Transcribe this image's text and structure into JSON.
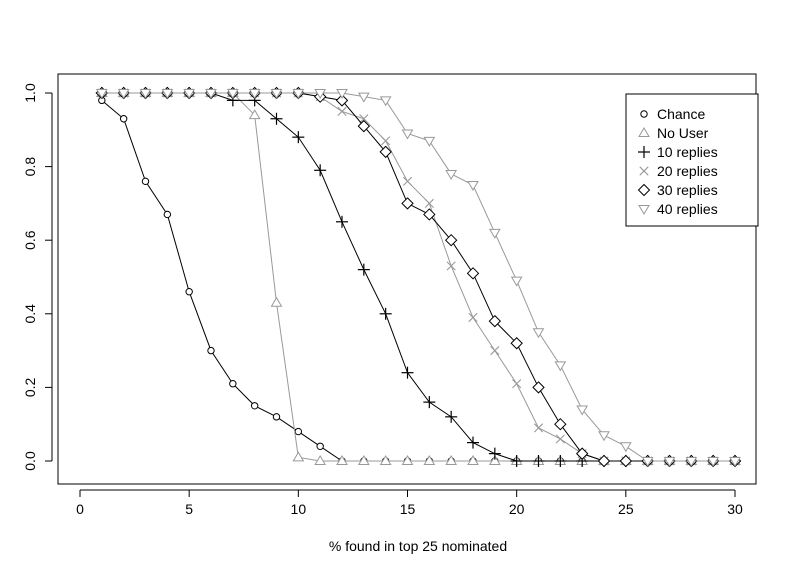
{
  "chart_data": {
    "type": "line",
    "xlabel": "% found in top 25 nominated",
    "ylabel": "",
    "xlim": [
      0,
      30
    ],
    "ylim": [
      0,
      1
    ],
    "xticks": [
      0,
      5,
      10,
      15,
      20,
      25,
      30
    ],
    "yticks": [
      0.0,
      0.2,
      0.4,
      0.6,
      0.8,
      1.0
    ],
    "xtick_labels": [
      "0",
      "5",
      "10",
      "15",
      "20",
      "25",
      "30"
    ],
    "ytick_labels": [
      "0.0",
      "0.2",
      "0.4",
      "0.6",
      "0.8",
      "1.0"
    ],
    "grid": false,
    "legend_position": "top-right",
    "series": [
      {
        "name": "Chance",
        "marker": "circle",
        "color": "#000000",
        "x": [
          1,
          2,
          3,
          4,
          5,
          6,
          7,
          8,
          9,
          10,
          11,
          12,
          13,
          14,
          15,
          16,
          17,
          18,
          19,
          20,
          21,
          22,
          23,
          24,
          25,
          26,
          27,
          28,
          29,
          30
        ],
        "y": [
          0.98,
          0.93,
          0.76,
          0.67,
          0.46,
          0.3,
          0.21,
          0.15,
          0.12,
          0.08,
          0.04,
          0,
          0,
          0,
          0,
          0,
          0,
          0,
          0,
          0,
          0,
          0,
          0,
          0,
          0,
          0,
          0,
          0,
          0,
          0
        ]
      },
      {
        "name": "No User",
        "marker": "triangle-up",
        "color": "#999999",
        "x": [
          1,
          2,
          3,
          4,
          5,
          6,
          7,
          8,
          9,
          10,
          11,
          12,
          13,
          14,
          15,
          16,
          17,
          18,
          19,
          20,
          21,
          22,
          23,
          24,
          25,
          26,
          27,
          28,
          29,
          30
        ],
        "y": [
          1,
          1,
          1,
          1,
          1,
          1,
          1,
          0.94,
          0.43,
          0.01,
          0,
          0,
          0,
          0,
          0,
          0,
          0,
          0,
          0,
          0,
          0,
          0,
          0,
          0,
          0,
          0,
          0,
          0,
          0,
          0
        ]
      },
      {
        "name": "10 replies",
        "marker": "plus",
        "color": "#000000",
        "x": [
          1,
          2,
          3,
          4,
          5,
          6,
          7,
          8,
          9,
          10,
          11,
          12,
          13,
          14,
          15,
          16,
          17,
          18,
          19,
          20,
          21,
          22,
          23,
          24,
          25,
          26,
          27,
          28,
          29,
          30
        ],
        "y": [
          1,
          1,
          1,
          1,
          1,
          1,
          0.98,
          0.98,
          0.93,
          0.88,
          0.79,
          0.65,
          0.52,
          0.4,
          0.24,
          0.16,
          0.12,
          0.05,
          0.02,
          0,
          0,
          0,
          0,
          0,
          0,
          0,
          0,
          0,
          0,
          0
        ]
      },
      {
        "name": "20 replies",
        "marker": "cross",
        "color": "#999999",
        "x": [
          1,
          2,
          3,
          4,
          5,
          6,
          7,
          8,
          9,
          10,
          11,
          12,
          13,
          14,
          15,
          16,
          17,
          18,
          19,
          20,
          21,
          22,
          23,
          24,
          25,
          26,
          27,
          28,
          29,
          30
        ],
        "y": [
          1,
          1,
          1,
          1,
          1,
          1,
          1,
          1,
          1,
          1,
          0.99,
          0.95,
          0.93,
          0.87,
          0.76,
          0.7,
          0.53,
          0.39,
          0.3,
          0.21,
          0.09,
          0.06,
          0.02,
          0,
          0,
          0,
          0,
          0,
          0,
          0
        ]
      },
      {
        "name": "30 replies",
        "marker": "diamond",
        "color": "#000000",
        "x": [
          1,
          2,
          3,
          4,
          5,
          6,
          7,
          8,
          9,
          10,
          11,
          12,
          13,
          14,
          15,
          16,
          17,
          18,
          19,
          20,
          21,
          22,
          23,
          24,
          25,
          26,
          27,
          28,
          29,
          30
        ],
        "y": [
          1,
          1,
          1,
          1,
          1,
          1,
          1,
          1,
          1,
          1,
          0.99,
          0.98,
          0.91,
          0.84,
          0.7,
          0.67,
          0.6,
          0.51,
          0.38,
          0.32,
          0.2,
          0.1,
          0.02,
          0,
          0,
          0,
          0,
          0,
          0,
          0
        ]
      },
      {
        "name": "40 replies",
        "marker": "triangle-down",
        "color": "#999999",
        "x": [
          1,
          2,
          3,
          4,
          5,
          6,
          7,
          8,
          9,
          10,
          11,
          12,
          13,
          14,
          15,
          16,
          17,
          18,
          19,
          20,
          21,
          22,
          23,
          24,
          25,
          26,
          27,
          28,
          29,
          30
        ],
        "y": [
          1,
          1,
          1,
          1,
          1,
          1,
          1,
          1,
          1,
          1,
          1,
          1,
          0.99,
          0.98,
          0.89,
          0.87,
          0.78,
          0.75,
          0.62,
          0.49,
          0.35,
          0.26,
          0.14,
          0.07,
          0.04,
          0,
          0,
          0,
          0,
          0
        ]
      }
    ]
  }
}
